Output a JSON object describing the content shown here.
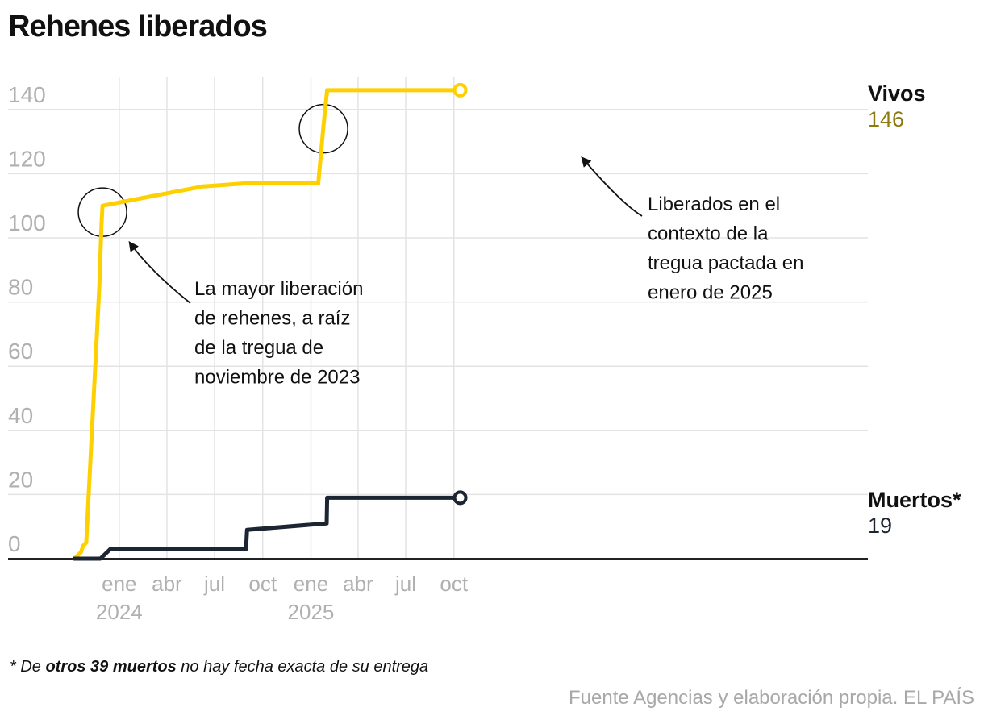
{
  "chart_data": {
    "type": "line",
    "title": "Rehenes liberados",
    "xlabel": "",
    "ylabel": "",
    "ylim": [
      0,
      150
    ],
    "yticks": [
      0,
      20,
      40,
      60,
      80,
      100,
      120,
      140
    ],
    "x_range": [
      "2023-10-07",
      "2025-10-20"
    ],
    "xticks": [
      {
        "date": "2024-01-01",
        "label": "ene",
        "year": "2024"
      },
      {
        "date": "2024-04-01",
        "label": "abr",
        "year": ""
      },
      {
        "date": "2024-07-01",
        "label": "jul",
        "year": ""
      },
      {
        "date": "2024-10-01",
        "label": "oct",
        "year": ""
      },
      {
        "date": "2025-01-01",
        "label": "ene",
        "year": "2025"
      },
      {
        "date": "2025-04-01",
        "label": "abr",
        "year": ""
      },
      {
        "date": "2025-07-01",
        "label": "jul",
        "year": ""
      },
      {
        "date": "2025-10-01",
        "label": "oct",
        "year": ""
      }
    ],
    "series": [
      {
        "name": "Vivos",
        "final_label": "146",
        "color": "#ffd000",
        "label_color": "#8c7a12",
        "points": [
          [
            "2023-10-07",
            0
          ],
          [
            "2023-10-20",
            2
          ],
          [
            "2023-10-24",
            4
          ],
          [
            "2023-10-30",
            5
          ],
          [
            "2023-11-24",
            85
          ],
          [
            "2023-11-28",
            104
          ],
          [
            "2023-11-30",
            110
          ],
          [
            "2024-06-08",
            116
          ],
          [
            "2024-09-01",
            117
          ],
          [
            "2025-01-15",
            117
          ],
          [
            "2025-01-25",
            135
          ],
          [
            "2025-02-01",
            146
          ],
          [
            "2025-10-13",
            146
          ]
        ]
      },
      {
        "name": "Muertos*",
        "final_label": "19",
        "color": "#1c2633",
        "label_color": "#1c2633",
        "points": [
          [
            "2023-10-07",
            0
          ],
          [
            "2023-11-26",
            0
          ],
          [
            "2023-12-15",
            3
          ],
          [
            "2024-08-30",
            3
          ],
          [
            "2024-09-01",
            9
          ],
          [
            "2025-01-31",
            11
          ],
          [
            "2025-02-01",
            19
          ],
          [
            "2025-10-13",
            19
          ]
        ]
      }
    ],
    "annotations": [
      {
        "name": "annotation-nov-2023",
        "lines": [
          "La mayor liberación",
          "de rehenes, a raíz",
          "de la tregua de",
          "noviembre de 2023"
        ],
        "circle_at": [
          "2023-11-30",
          108
        ]
      },
      {
        "name": "annotation-ene-2025",
        "lines": [
          "Liberados en el",
          "contexto de la",
          "tregua pactada en",
          "enero de 2025"
        ],
        "circle_at": [
          "2025-01-25",
          134
        ]
      }
    ]
  },
  "footnote": {
    "prefix": "* De ",
    "bold": "otros 39 muertos",
    "suffix": " no hay fecha exacta de su entrega"
  },
  "source": "Fuente Agencias y elaboración propia. EL PAÍS"
}
